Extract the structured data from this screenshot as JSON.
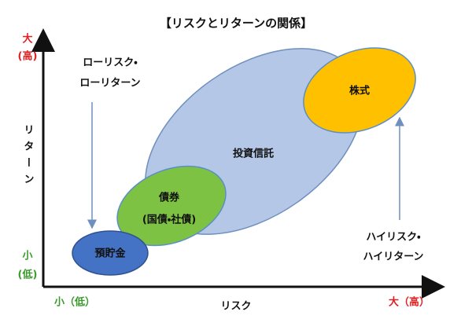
{
  "title": "【リスクとリターンの関係】",
  "y_axis": {
    "label": "リターン",
    "high": [
      "大",
      "(高)"
    ],
    "low": [
      "小",
      "(低)"
    ]
  },
  "x_axis": {
    "label": "リスク",
    "low": "小（低）",
    "high": "大（高）"
  },
  "annotations": {
    "low_risk": [
      "ローリスク・",
      "ローリターン"
    ],
    "high_risk": [
      "ハイリスク・",
      "ハイリターン"
    ]
  },
  "nodes": [
    {
      "label": [
        "預貯金"
      ]
    },
    {
      "label": [
        "債券",
        "(国債・社債)"
      ]
    },
    {
      "label": [
        "投資信託"
      ]
    },
    {
      "label": [
        "株式"
      ]
    }
  ]
}
